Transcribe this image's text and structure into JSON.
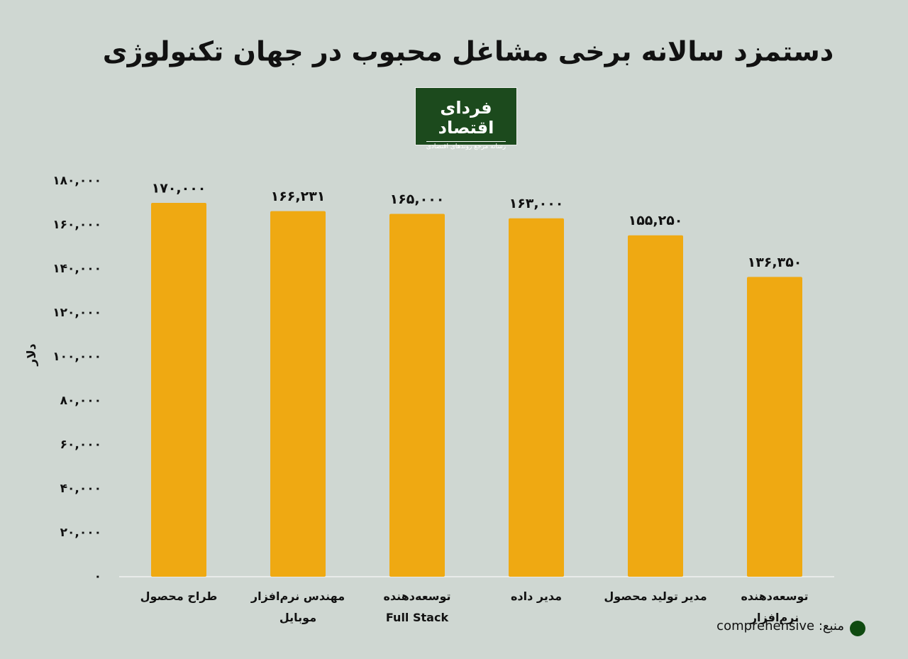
{
  "chart_data": {
    "type": "bar",
    "title": "دستمزد سالانه برخی مشاغل محبوب در جهان تکنولوژی",
    "logo": {
      "name": "فردای اقتصاد",
      "tagline": "رسانه مرجع روندهای اقتصادی"
    },
    "y_label": "دلار",
    "categories": [
      "طراح محصول",
      "مهندس نرم‌افزار\nموبایل",
      "توسعه‌دهنده\nFull Stack",
      "مدیر داده",
      "مدیر تولید محصول",
      "توسعه‌دهنده نرم‌افزار"
    ],
    "values": [
      170000,
      166231,
      165000,
      163000,
      155250,
      136350
    ],
    "value_labels": [
      "۱۷۰,۰۰۰",
      "۱۶۶,۲۳۱",
      "۱۶۵,۰۰۰",
      "۱۶۳,۰۰۰",
      "۱۵۵,۲۵۰",
      "۱۳۶,۳۵۰"
    ],
    "color": "#efa912",
    "ylim": [
      0,
      180000
    ],
    "yticks": [
      {
        "value": 0,
        "label": "۰"
      },
      {
        "value": 20000,
        "label": "۲۰,۰۰۰"
      },
      {
        "value": 40000,
        "label": "۴۰,۰۰۰"
      },
      {
        "value": 60000,
        "label": "۶۰,۰۰۰"
      },
      {
        "value": 80000,
        "label": "۸۰,۰۰۰"
      },
      {
        "value": 100000,
        "label": "۱۰۰,۰۰۰"
      },
      {
        "value": 120000,
        "label": "۱۲۰,۰۰۰"
      },
      {
        "value": 140000,
        "label": "۱۴۰,۰۰۰"
      },
      {
        "value": 160000,
        "label": "۱۶۰,۰۰۰"
      },
      {
        "value": 180000,
        "label": "۱۸۰,۰۰۰"
      }
    ],
    "grid": false,
    "source": "منبع: comprehensive"
  }
}
